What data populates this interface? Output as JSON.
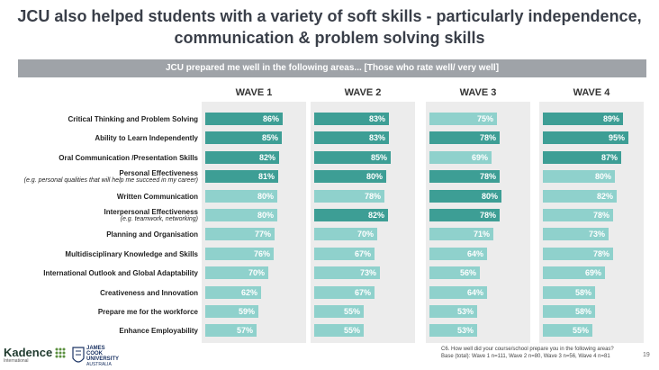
{
  "title_line1": "JCU also helped students with a variety of soft skills - particularly independence,",
  "title_line2": "communication & problem solving skills",
  "subbanner": "JCU prepared me well in the following areas... [Those who rate well/ very well]",
  "colors": {
    "dark": "#3d9e95",
    "light": "#8fd1cc"
  },
  "chart_data": {
    "type": "bar",
    "orientation": "horizontal",
    "title": "JCU prepared me well in the following areas... [Those who rate well/ very well]",
    "categories": [
      {
        "label": "Critical Thinking and Problem Solving",
        "sub": ""
      },
      {
        "label": "Ability to Learn Independently",
        "sub": ""
      },
      {
        "label": "Oral Communication /Presentation Skills",
        "sub": ""
      },
      {
        "label": "Personal Effectiveness",
        "sub": "(e.g. personal qualities that will help me succeed in my career)"
      },
      {
        "label": "Written Communication",
        "sub": ""
      },
      {
        "label": "Interpersonal Effectiveness",
        "sub": "(e.g. teamwork, networking)"
      },
      {
        "label": "Planning and Organisation",
        "sub": ""
      },
      {
        "label": "Multidisciplinary Knowledge and Skills",
        "sub": ""
      },
      {
        "label": "International Outlook and Global Adaptability",
        "sub": ""
      },
      {
        "label": "Creativeness and Innovation",
        "sub": ""
      },
      {
        "label": "Prepare me for the workforce",
        "sub": ""
      },
      {
        "label": "Enhance Employability",
        "sub": ""
      }
    ],
    "series": [
      {
        "name": "WAVE 1",
        "values": [
          86,
          85,
          82,
          81,
          80,
          80,
          77,
          76,
          70,
          62,
          59,
          57
        ],
        "highlight": [
          true,
          true,
          true,
          true,
          false,
          false,
          false,
          false,
          false,
          false,
          false,
          false
        ]
      },
      {
        "name": "WAVE 2",
        "values": [
          83,
          83,
          85,
          80,
          78,
          82,
          70,
          67,
          73,
          67,
          55,
          55
        ],
        "highlight": [
          true,
          true,
          true,
          true,
          false,
          true,
          false,
          false,
          false,
          false,
          false,
          false
        ]
      },
      {
        "name": "WAVE 3",
        "values": [
          75,
          78,
          69,
          78,
          80,
          78,
          71,
          64,
          56,
          64,
          53,
          53
        ],
        "highlight": [
          false,
          true,
          false,
          true,
          true,
          true,
          false,
          false,
          false,
          false,
          false,
          false
        ]
      },
      {
        "name": "WAVE 4",
        "values": [
          89,
          95,
          87,
          80,
          82,
          78,
          73,
          78,
          69,
          58,
          58,
          55
        ],
        "highlight": [
          true,
          true,
          true,
          false,
          false,
          false,
          false,
          false,
          false,
          false,
          false,
          false
        ]
      }
    ],
    "value_suffix": "%",
    "xlim": [
      0,
      100
    ]
  },
  "footer": {
    "question": "C6. How well did your course/school prepare you in the following areas?",
    "base": "Base (total): Wave 1 n=111, Wave 2 n=80, Wave 3 n=56, Wave 4 n=81",
    "page": "19"
  },
  "logos": {
    "kadence": "Kadence",
    "kadence_sub": "International",
    "jcu": "JAMES COOK UNIVERSITY",
    "jcu_sub": "AUSTRALIA"
  }
}
